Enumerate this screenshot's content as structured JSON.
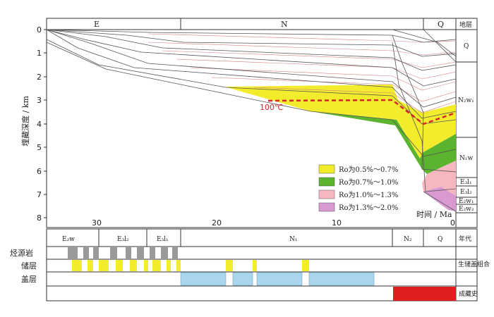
{
  "y_axis": {
    "label": "埋藏深度 / km",
    "ticks": [
      "0",
      "1",
      "2",
      "3",
      "4",
      "5",
      "6",
      "7",
      "8"
    ]
  },
  "x_axis": {
    "label": "时间 / Ma",
    "ticks": [
      "30",
      "20",
      "10",
      "0"
    ]
  },
  "top_strata": [
    "E",
    "N",
    "Q"
  ],
  "right_column": {
    "header": "地层",
    "units": [
      "Q",
      "N₂w₁",
      "N₁w",
      "E₃l₁",
      "E₃l₂",
      "E₂w₁",
      "E₂w₂"
    ]
  },
  "isotherm_label": "100℃",
  "legend": [
    {
      "label": "Ro为0.5%～0.7%",
      "color": "#f3ec2c"
    },
    {
      "label": "Ro为0.7%～1.0%",
      "color": "#5cb32e"
    },
    {
      "label": "Ro为1.0%～1.3%",
      "color": "#f6b8c0"
    },
    {
      "label": "Ro为1.3%～2.0%",
      "color": "#d89ad0"
    }
  ],
  "age_row": {
    "units": [
      "E₂w",
      "E₃l₂",
      "E₃l₁",
      "N₁",
      "N₂",
      "Q"
    ],
    "header": "年代"
  },
  "rows": {
    "source": "烃源岩",
    "reservoir": "储层",
    "cap": "盖层",
    "combo_label": "生储盖组合",
    "accumulation_label": "成藏史"
  },
  "colors": {
    "source": "#9a9a9a",
    "reservoir": "#f3ec2c",
    "cap": "#a9d6ee",
    "accumulation": "#e02020",
    "isotherm": "#d4262b"
  }
}
